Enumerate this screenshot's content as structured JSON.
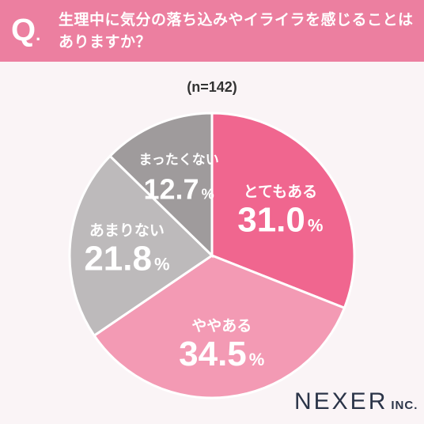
{
  "header": {
    "q_letter": "Q",
    "q_dot": ".",
    "question": "生理中に気分の落ち込みやイライラを感じることはありますか？"
  },
  "sample_size": "(n=142)",
  "brand": {
    "name": "NEXER",
    "suffix": "INC."
  },
  "colors": {
    "header_bg": "#ec7fa0",
    "slice_1": "#f0668f",
    "slice_2": "#f39ab4",
    "slice_3": "#bdbabb",
    "slice_4": "#9f9b9c"
  },
  "chart_data": {
    "type": "pie",
    "title": "",
    "categories": [
      "とてもある",
      "ややある",
      "あまりない",
      "まったくない"
    ],
    "values": [
      31.0,
      34.5,
      21.8,
      12.7
    ],
    "value_labels": [
      "31.0",
      "34.5",
      "21.8",
      "12.7"
    ],
    "unit": "%",
    "start_angle_deg": 0,
    "direction": "clockwise",
    "legend": "none"
  }
}
